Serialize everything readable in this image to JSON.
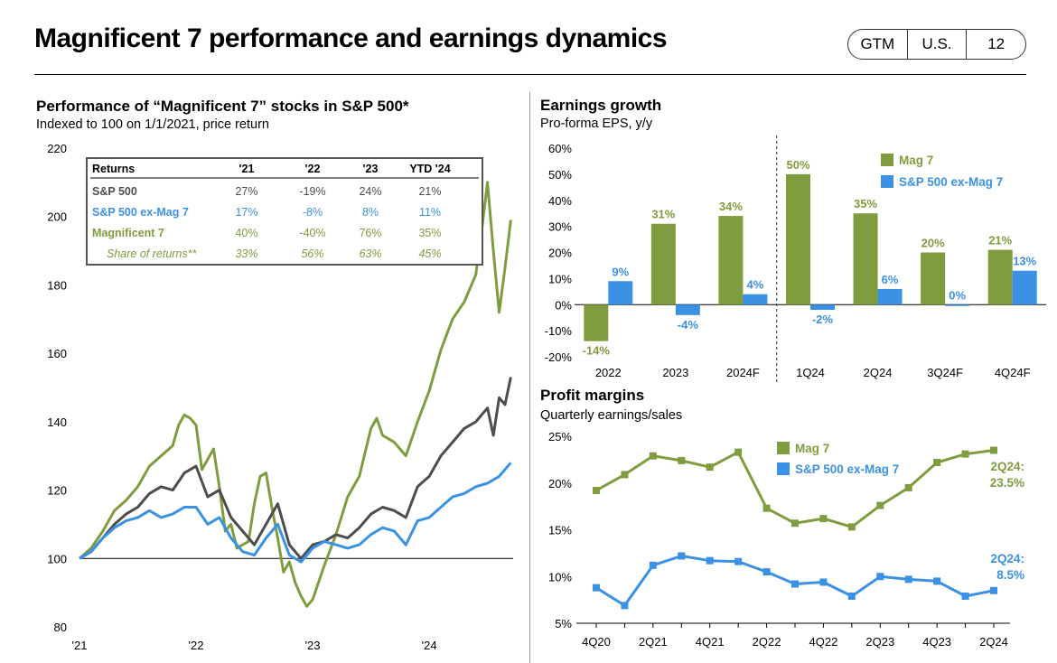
{
  "header": {
    "title": "Magnificent 7 performance and earnings dynamics",
    "badge": [
      "GTM",
      "U.S.",
      "12"
    ]
  },
  "colors": {
    "mag7": "#7f9d3e",
    "sp500": "#4d4d4d",
    "exmag7": "#3b91e4"
  },
  "chart_data": [
    {
      "type": "line",
      "title": "Performance of “Magnificent 7” stocks in S&P 500*",
      "subtitle": "Indexed to 100 on 1/1/2021, price return",
      "ylim": [
        80,
        220
      ],
      "yticks": [
        "220",
        "200",
        "180",
        "160",
        "140",
        "120",
        "100",
        "80"
      ],
      "xlim": [
        2021.0,
        2024.72
      ],
      "xticks": [
        {
          "label": "'21",
          "x": 2021.0
        },
        {
          "label": "'22",
          "x": 2022.0
        },
        {
          "label": "'23",
          "x": 2023.0
        },
        {
          "label": "'24",
          "x": 2024.0
        }
      ],
      "series": [
        {
          "name": "Magnificent 7",
          "color": "#7f9d3e",
          "x": [
            2021.0,
            2021.1,
            2021.2,
            2021.3,
            2021.4,
            2021.5,
            2021.6,
            2021.7,
            2021.8,
            2021.85,
            2021.9,
            2021.95,
            2022.0,
            2022.05,
            2022.1,
            2022.15,
            2022.2,
            2022.25,
            2022.3,
            2022.35,
            2022.4,
            2022.45,
            2022.5,
            2022.55,
            2022.6,
            2022.65,
            2022.7,
            2022.75,
            2022.8,
            2022.85,
            2022.9,
            2022.95,
            2023.0,
            2023.1,
            2023.2,
            2023.3,
            2023.4,
            2023.5,
            2023.55,
            2023.6,
            2023.7,
            2023.8,
            2023.9,
            2024.0,
            2024.1,
            2024.2,
            2024.3,
            2024.4,
            2024.45,
            2024.5,
            2024.55,
            2024.6,
            2024.65,
            2024.7
          ],
          "y": [
            100,
            103,
            108,
            114,
            117,
            121,
            127,
            130,
            133,
            139,
            142,
            141,
            139,
            126,
            129,
            132,
            121,
            108,
            110,
            103,
            104,
            105,
            116,
            124,
            125,
            115,
            106,
            96,
            99,
            93,
            89,
            86,
            88,
            98,
            107,
            118,
            124,
            138,
            141,
            136,
            134,
            130,
            140,
            149,
            161,
            170,
            175,
            183,
            196,
            210,
            190,
            172,
            185,
            199
          ]
        },
        {
          "name": "S&P 500",
          "color": "#4d4d4d",
          "x": [
            2021.0,
            2021.1,
            2021.2,
            2021.3,
            2021.4,
            2021.5,
            2021.6,
            2021.7,
            2021.8,
            2021.9,
            2022.0,
            2022.1,
            2022.2,
            2022.3,
            2022.4,
            2022.5,
            2022.6,
            2022.7,
            2022.8,
            2022.9,
            2023.0,
            2023.1,
            2023.2,
            2023.3,
            2023.4,
            2023.5,
            2023.6,
            2023.7,
            2023.8,
            2023.9,
            2024.0,
            2024.1,
            2024.2,
            2024.3,
            2024.4,
            2024.5,
            2024.55,
            2024.6,
            2024.65,
            2024.7
          ],
          "y": [
            100,
            102,
            106,
            110,
            113,
            115,
            119,
            121,
            120,
            125,
            127,
            118,
            120,
            112,
            108,
            104,
            110,
            116,
            104,
            100,
            104,
            105,
            107,
            106,
            109,
            113,
            115,
            114,
            112,
            121,
            124,
            130,
            134,
            138,
            140,
            144,
            136,
            147,
            145,
            153
          ]
        },
        {
          "name": "S&P 500 ex-Mag 7",
          "color": "#3b91e4",
          "x": [
            2021.0,
            2021.1,
            2021.2,
            2021.3,
            2021.4,
            2021.5,
            2021.6,
            2021.7,
            2021.8,
            2021.9,
            2022.0,
            2022.1,
            2022.2,
            2022.3,
            2022.4,
            2022.5,
            2022.6,
            2022.7,
            2022.8,
            2022.9,
            2023.0,
            2023.1,
            2023.2,
            2023.3,
            2023.4,
            2023.5,
            2023.6,
            2023.7,
            2023.8,
            2023.9,
            2024.0,
            2024.1,
            2024.2,
            2024.3,
            2024.4,
            2024.5,
            2024.6,
            2024.7
          ],
          "y": [
            100,
            102,
            106,
            109,
            111,
            112,
            114,
            112,
            113,
            115,
            115,
            110,
            112,
            106,
            102,
            101,
            106,
            110,
            101,
            99,
            103,
            105,
            104,
            103,
            104,
            107,
            109,
            108,
            104,
            111,
            112,
            115,
            118,
            119,
            121,
            122,
            124,
            128
          ]
        }
      ],
      "table": {
        "headers": [
          "Returns",
          "'21",
          "'22",
          "'23",
          "YTD '24"
        ],
        "rows": [
          {
            "label": "S&P 500",
            "values": [
              "27%",
              "-19%",
              "24%",
              "21%"
            ],
            "color": "#4d4d4d"
          },
          {
            "label": "S&P 500 ex-Mag 7",
            "values": [
              "17%",
              "-8%",
              "8%",
              "11%"
            ],
            "color": "#3b91e4"
          },
          {
            "label": "Magnificent 7",
            "values": [
              "40%",
              "-40%",
              "76%",
              "35%"
            ],
            "color": "#7f9d3e"
          },
          {
            "label": "Share of returns**",
            "values": [
              "33%",
              "56%",
              "63%",
              "45%"
            ],
            "color": "#7f9d3e",
            "italic": true
          }
        ]
      }
    },
    {
      "type": "bar",
      "title": "Earnings growth",
      "subtitle": "Pro-forma EPS, y/y",
      "ylim": [
        -20,
        60
      ],
      "yticks": [
        "60%",
        "50%",
        "40%",
        "30%",
        "20%",
        "10%",
        "0%",
        "-10%",
        "-20%"
      ],
      "categories": [
        "2022",
        "2023",
        "2024F",
        "1Q24",
        "2Q24",
        "3Q24F",
        "4Q24F"
      ],
      "series": [
        {
          "name": "Mag 7",
          "color": "#7f9d3e",
          "values": [
            -14,
            31,
            34,
            50,
            35,
            20,
            21
          ],
          "labels": [
            "-14%",
            "31%",
            "34%",
            "50%",
            "35%",
            "20%",
            "21%"
          ]
        },
        {
          "name": "S&P 500 ex-Mag 7",
          "color": "#3b91e4",
          "values": [
            9,
            -4,
            4,
            -2,
            6,
            0,
            13
          ],
          "labels": [
            "9%",
            "-4%",
            "4%",
            "-2%",
            "6%",
            "0%",
            "13%"
          ]
        }
      ],
      "legend": "top-right"
    },
    {
      "type": "line",
      "title": "Profit margins",
      "subtitle": "Quarterly earnings/sales",
      "ylim": [
        5,
        25
      ],
      "yticks": [
        "25%",
        "20%",
        "15%",
        "10%",
        "5%"
      ],
      "categories": [
        "4Q20",
        "1Q21",
        "2Q21",
        "3Q21",
        "4Q21",
        "1Q22",
        "2Q22",
        "3Q22",
        "4Q22",
        "1Q23",
        "2Q23",
        "3Q23",
        "4Q23",
        "1Q24",
        "2Q24"
      ],
      "xtick_labels": [
        "4Q20",
        "2Q21",
        "4Q21",
        "2Q22",
        "4Q22",
        "2Q23",
        "4Q23",
        "2Q24"
      ],
      "series": [
        {
          "name": "Mag 7",
          "color": "#7f9d3e",
          "values": [
            19.2,
            20.9,
            22.9,
            22.4,
            21.7,
            23.3,
            17.3,
            15.7,
            16.2,
            15.3,
            17.6,
            19.5,
            22.2,
            23.1,
            23.5
          ]
        },
        {
          "name": "S&P 500 ex-Mag 7",
          "color": "#3b91e4",
          "values": [
            8.8,
            6.9,
            11.2,
            12.2,
            11.7,
            11.6,
            10.5,
            9.2,
            9.4,
            7.9,
            10.0,
            9.7,
            9.5,
            7.9,
            8.5
          ]
        }
      ],
      "annotations": [
        {
          "line1": "2Q24:",
          "line2": "23.5%",
          "color": "#7f9d3e"
        },
        {
          "line1": "2Q24:",
          "line2": "8.5%",
          "color": "#3b91e4"
        }
      ],
      "legend": "top-right"
    }
  ]
}
